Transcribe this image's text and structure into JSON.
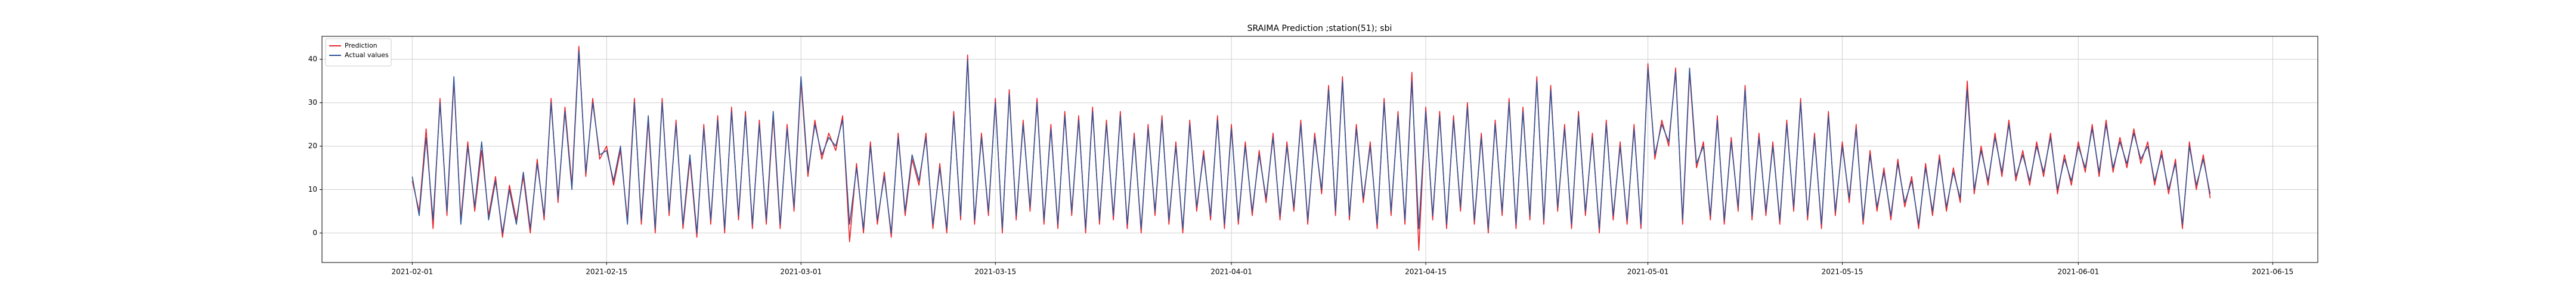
{
  "chart_data": {
    "type": "line",
    "title": "SRAIMA Prediction ;station(51); sbi",
    "xlim": [
      "2021-01-25 12:00",
      "2021-06-18 06:00"
    ],
    "xticks": [
      "2021-02-01",
      "2021-02-15",
      "2021-03-01",
      "2021-03-15",
      "2021-04-01",
      "2021-04-15",
      "2021-05-01",
      "2021-05-15",
      "2021-06-01",
      "2021-06-15"
    ],
    "ylim": [
      -6.8,
      45.3
    ],
    "yticks": [
      0,
      10,
      20,
      30,
      40
    ],
    "grid": true,
    "legend": "upper left",
    "x": [
      "2021-02-01 00:00",
      "2021-02-01 12:00",
      "2021-02-02 00:00",
      "2021-02-02 12:00",
      "2021-02-03 00:00",
      "2021-02-03 12:00",
      "2021-02-04 00:00",
      "2021-02-04 12:00",
      "2021-02-05 00:00",
      "2021-02-05 12:00",
      "2021-02-06 00:00",
      "2021-02-06 12:00",
      "2021-02-07 00:00",
      "2021-02-07 12:00",
      "2021-02-08 00:00",
      "2021-02-08 12:00",
      "2021-02-09 00:00",
      "2021-02-09 12:00",
      "2021-02-10 00:00",
      "2021-02-10 12:00",
      "2021-02-11 00:00",
      "2021-02-11 12:00",
      "2021-02-12 00:00",
      "2021-02-12 12:00",
      "2021-02-13 00:00",
      "2021-02-13 12:00",
      "2021-02-14 00:00",
      "2021-02-14 12:00",
      "2021-02-15 00:00",
      "2021-02-15 12:00",
      "2021-02-16 00:00",
      "2021-02-16 12:00",
      "2021-02-17 00:00",
      "2021-02-17 12:00",
      "2021-02-18 00:00",
      "2021-02-18 12:00",
      "2021-02-19 00:00",
      "2021-02-19 12:00",
      "2021-02-20 00:00",
      "2021-02-20 12:00",
      "2021-02-21 00:00",
      "2021-02-21 12:00",
      "2021-02-22 00:00",
      "2021-02-22 12:00",
      "2021-02-23 00:00",
      "2021-02-23 12:00",
      "2021-02-24 00:00",
      "2021-02-24 12:00",
      "2021-02-25 00:00",
      "2021-02-25 12:00",
      "2021-02-26 00:00",
      "2021-02-26 12:00",
      "2021-02-27 00:00",
      "2021-02-27 12:00",
      "2021-02-28 00:00",
      "2021-02-28 12:00",
      "2021-03-01 00:00",
      "2021-03-01 12:00",
      "2021-03-02 00:00",
      "2021-03-02 12:00",
      "2021-03-03 00:00",
      "2021-03-03 12:00",
      "2021-03-04 00:00",
      "2021-03-04 12:00",
      "2021-03-05 00:00",
      "2021-03-05 12:00",
      "2021-03-06 00:00",
      "2021-03-06 12:00",
      "2021-03-07 00:00",
      "2021-03-07 12:00",
      "2021-03-08 00:00",
      "2021-03-08 12:00",
      "2021-03-09 00:00",
      "2021-03-09 12:00",
      "2021-03-10 00:00",
      "2021-03-10 12:00",
      "2021-03-11 00:00",
      "2021-03-11 12:00",
      "2021-03-12 00:00",
      "2021-03-12 12:00",
      "2021-03-13 00:00",
      "2021-03-13 12:00",
      "2021-03-14 00:00",
      "2021-03-14 12:00",
      "2021-03-15 00:00",
      "2021-03-15 12:00",
      "2021-03-16 00:00",
      "2021-03-16 12:00",
      "2021-03-17 00:00",
      "2021-03-17 12:00",
      "2021-03-18 00:00",
      "2021-03-18 12:00",
      "2021-03-19 00:00",
      "2021-03-19 12:00",
      "2021-03-20 00:00",
      "2021-03-20 12:00",
      "2021-03-21 00:00",
      "2021-03-21 12:00",
      "2021-03-22 00:00",
      "2021-03-22 12:00",
      "2021-03-23 00:00",
      "2021-03-23 12:00",
      "2021-03-24 00:00",
      "2021-03-24 12:00",
      "2021-03-25 00:00",
      "2021-03-25 12:00",
      "2021-03-26 00:00",
      "2021-03-26 12:00",
      "2021-03-27 00:00",
      "2021-03-27 12:00",
      "2021-03-28 00:00",
      "2021-03-28 12:00",
      "2021-03-29 00:00",
      "2021-03-29 12:00",
      "2021-03-30 00:00",
      "2021-03-30 12:00",
      "2021-03-31 00:00",
      "2021-03-31 12:00",
      "2021-04-01 00:00",
      "2021-04-01 12:00",
      "2021-04-02 00:00",
      "2021-04-02 12:00",
      "2021-04-03 00:00",
      "2021-04-03 12:00",
      "2021-04-04 00:00",
      "2021-04-04 12:00",
      "2021-04-05 00:00",
      "2021-04-05 12:00",
      "2021-04-06 00:00",
      "2021-04-06 12:00",
      "2021-04-07 00:00",
      "2021-04-07 12:00",
      "2021-04-08 00:00",
      "2021-04-08 12:00",
      "2021-04-09 00:00",
      "2021-04-09 12:00",
      "2021-04-10 00:00",
      "2021-04-10 12:00",
      "2021-04-11 00:00",
      "2021-04-11 12:00",
      "2021-04-12 00:00",
      "2021-04-12 12:00",
      "2021-04-13 00:00",
      "2021-04-13 12:00",
      "2021-04-14 00:00",
      "2021-04-14 12:00",
      "2021-04-15 00:00",
      "2021-04-15 12:00",
      "2021-04-16 00:00",
      "2021-04-16 12:00",
      "2021-04-17 00:00",
      "2021-04-17 12:00",
      "2021-04-18 00:00",
      "2021-04-18 12:00",
      "2021-04-19 00:00",
      "2021-04-19 12:00",
      "2021-04-20 00:00",
      "2021-04-20 12:00",
      "2021-04-21 00:00",
      "2021-04-21 12:00",
      "2021-04-22 00:00",
      "2021-04-22 12:00",
      "2021-04-23 00:00",
      "2021-04-23 12:00",
      "2021-04-24 00:00",
      "2021-04-24 12:00",
      "2021-04-25 00:00",
      "2021-04-25 12:00",
      "2021-04-26 00:00",
      "2021-04-26 12:00",
      "2021-04-27 00:00",
      "2021-04-27 12:00",
      "2021-04-28 00:00",
      "2021-04-28 12:00",
      "2021-04-29 00:00",
      "2021-04-29 12:00",
      "2021-04-30 00:00",
      "2021-04-30 12:00",
      "2021-05-01 00:00",
      "2021-05-01 12:00",
      "2021-05-02 00:00",
      "2021-05-02 12:00",
      "2021-05-03 00:00",
      "2021-05-03 12:00",
      "2021-05-04 00:00",
      "2021-05-04 12:00",
      "2021-05-05 00:00",
      "2021-05-05 12:00",
      "2021-05-06 00:00",
      "2021-05-06 12:00",
      "2021-05-07 00:00",
      "2021-05-07 12:00",
      "2021-05-08 00:00",
      "2021-05-08 12:00",
      "2021-05-09 00:00",
      "2021-05-09 12:00",
      "2021-05-10 00:00",
      "2021-05-10 12:00",
      "2021-05-11 00:00",
      "2021-05-11 12:00",
      "2021-05-12 00:00",
      "2021-05-12 12:00",
      "2021-05-13 00:00",
      "2021-05-13 12:00",
      "2021-05-14 00:00",
      "2021-05-14 12:00",
      "2021-05-15 00:00",
      "2021-05-15 12:00",
      "2021-05-16 00:00",
      "2021-05-16 12:00",
      "2021-05-17 00:00",
      "2021-05-17 12:00",
      "2021-05-18 00:00",
      "2021-05-18 12:00",
      "2021-05-19 00:00",
      "2021-05-19 12:00",
      "2021-05-20 00:00",
      "2021-05-20 12:00",
      "2021-05-21 00:00",
      "2021-05-21 12:00",
      "2021-05-22 00:00",
      "2021-05-22 12:00",
      "2021-05-23 00:00",
      "2021-05-23 12:00",
      "2021-05-24 00:00",
      "2021-05-24 12:00",
      "2021-05-25 00:00",
      "2021-05-25 12:00",
      "2021-05-26 00:00",
      "2021-05-26 12:00",
      "2021-05-27 00:00",
      "2021-05-27 12:00",
      "2021-05-28 00:00",
      "2021-05-28 12:00",
      "2021-05-29 00:00",
      "2021-05-29 12:00",
      "2021-05-30 00:00",
      "2021-05-30 12:00",
      "2021-05-31 00:00",
      "2021-05-31 12:00",
      "2021-06-01 00:00",
      "2021-06-01 12:00",
      "2021-06-02 00:00",
      "2021-06-02 12:00",
      "2021-06-03 00:00",
      "2021-06-03 12:00",
      "2021-06-04 00:00",
      "2021-06-04 12:00",
      "2021-06-05 00:00",
      "2021-06-05 12:00",
      "2021-06-06 00:00",
      "2021-06-06 12:00",
      "2021-06-07 00:00",
      "2021-06-07 12:00",
      "2021-06-08 00:00",
      "2021-06-08 12:00",
      "2021-06-09 00:00",
      "2021-06-09 12:00",
      "2021-06-10 00:00",
      "2021-06-10 12:00"
    ],
    "series": [
      {
        "name": "Prediction",
        "color": "#e8242b",
        "values": [
          12,
          5,
          24,
          1,
          31,
          4,
          35,
          3,
          21,
          5,
          19,
          4,
          13,
          -1,
          11,
          3,
          13,
          0,
          17,
          3,
          31,
          7,
          29,
          11,
          43,
          13,
          31,
          17,
          20,
          11,
          19,
          3,
          31,
          2,
          26,
          0,
          31,
          4,
          26,
          1,
          17,
          -1,
          25,
          2,
          27,
          0,
          29,
          3,
          28,
          1,
          26,
          2,
          27,
          1,
          25,
          5,
          35,
          13,
          26,
          17,
          23,
          19,
          27,
          -2,
          16,
          0,
          21,
          2,
          14,
          -1,
          23,
          4,
          17,
          11,
          23,
          1,
          16,
          0,
          28,
          3,
          41,
          2,
          23,
          4,
          31,
          0,
          33,
          3,
          26,
          5,
          31,
          2,
          25,
          1,
          28,
          4,
          27,
          0,
          29,
          2,
          26,
          3,
          28,
          1,
          23,
          0,
          25,
          4,
          27,
          2,
          21,
          0,
          26,
          5,
          19,
          3,
          27,
          1,
          25,
          2,
          21,
          4,
          19,
          7,
          23,
          3,
          21,
          5,
          26,
          2,
          23,
          9,
          34,
          4,
          36,
          3,
          25,
          7,
          21,
          1,
          31,
          4,
          28,
          2,
          37,
          -4,
          29,
          3,
          28,
          1,
          27,
          5,
          30,
          2,
          23,
          0,
          26,
          4,
          31,
          1,
          29,
          3,
          36,
          2,
          34,
          5,
          25,
          1,
          28,
          4,
          23,
          0,
          26,
          3,
          21,
          2,
          25,
          1,
          39,
          17,
          26,
          20,
          38,
          2,
          37,
          15,
          21,
          3,
          27,
          2,
          22,
          5,
          34,
          3,
          23,
          4,
          21,
          2,
          26,
          5,
          31,
          3,
          23,
          1,
          28,
          4,
          21,
          7,
          25,
          2,
          19,
          5,
          15,
          3,
          17,
          6,
          13,
          1,
          16,
          4,
          18,
          5,
          15,
          7,
          35,
          9,
          20,
          11,
          23,
          13,
          26,
          12,
          19,
          11,
          21,
          13,
          23,
          9,
          18,
          11,
          21,
          14,
          25,
          13,
          26,
          14,
          22,
          15,
          24,
          16,
          21,
          11,
          19,
          9,
          17,
          1,
          21,
          10,
          18,
          8
        ]
      },
      {
        "name": "Actual values",
        "color": "#2f5597",
        "values": [
          13,
          4,
          22,
          3,
          30,
          5,
          36,
          2,
          20,
          6,
          21,
          3,
          12,
          0,
          10,
          2,
          14,
          1,
          16,
          4,
          30,
          8,
          28,
          10,
          42,
          14,
          30,
          18,
          19,
          12,
          20,
          2,
          30,
          3,
          27,
          1,
          30,
          5,
          25,
          2,
          18,
          0,
          24,
          3,
          26,
          1,
          28,
          4,
          27,
          2,
          25,
          3,
          28,
          2,
          24,
          6,
          36,
          14,
          25,
          18,
          22,
          20,
          26,
          2,
          15,
          1,
          20,
          3,
          13,
          0,
          22,
          5,
          18,
          12,
          22,
          2,
          15,
          1,
          27,
          4,
          40,
          3,
          22,
          5,
          30,
          1,
          32,
          4,
          25,
          6,
          30,
          3,
          24,
          2,
          27,
          5,
          26,
          1,
          28,
          3,
          25,
          4,
          27,
          2,
          22,
          1,
          24,
          5,
          26,
          3,
          20,
          1,
          25,
          6,
          18,
          4,
          26,
          2,
          24,
          3,
          20,
          5,
          18,
          8,
          22,
          4,
          20,
          6,
          25,
          3,
          22,
          10,
          33,
          5,
          35,
          4,
          24,
          8,
          20,
          2,
          30,
          5,
          27,
          3,
          35,
          1,
          28,
          4,
          27,
          2,
          26,
          6,
          29,
          3,
          22,
          1,
          25,
          5,
          30,
          2,
          28,
          4,
          35,
          3,
          33,
          6,
          24,
          2,
          27,
          5,
          22,
          1,
          25,
          4,
          20,
          3,
          24,
          2,
          38,
          18,
          25,
          21,
          37,
          3,
          38,
          16,
          20,
          4,
          26,
          3,
          21,
          6,
          33,
          4,
          22,
          5,
          20,
          3,
          25,
          6,
          30,
          4,
          22,
          2,
          27,
          5,
          20,
          8,
          24,
          3,
          18,
          6,
          14,
          4,
          16,
          7,
          12,
          2,
          15,
          5,
          17,
          6,
          14,
          8,
          33,
          10,
          19,
          12,
          22,
          14,
          25,
          13,
          18,
          12,
          20,
          14,
          22,
          10,
          17,
          12,
          20,
          15,
          24,
          14,
          25,
          15,
          21,
          16,
          23,
          17,
          20,
          12,
          18,
          10,
          16,
          2,
          20,
          11,
          17,
          9
        ]
      }
    ]
  }
}
